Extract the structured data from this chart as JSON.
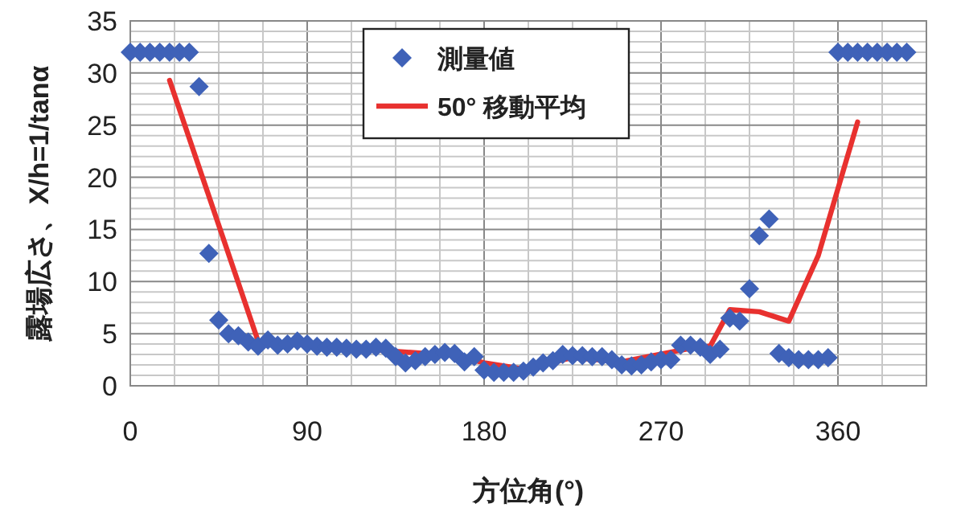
{
  "chart_data": {
    "type": "scatter",
    "xlabel": "方位角(°)",
    "ylabel": "露場広さ、X/h=1/tanα",
    "xlim": [
      0,
      405
    ],
    "xticks": [
      0,
      {
        "value": 22.5,
        "label": null
      },
      {
        "value": 45,
        "label": null
      },
      {
        "value": 67.5,
        "label": null
      },
      90,
      {
        "value": 112.5,
        "label": null
      },
      {
        "value": 135,
        "label": null
      },
      {
        "value": 157.5,
        "label": null
      },
      180,
      {
        "value": 202.5,
        "label": null
      },
      {
        "value": 225,
        "label": null
      },
      {
        "value": 247.5,
        "label": null
      },
      270,
      {
        "value": 292.5,
        "label": null
      },
      {
        "value": 315,
        "label": null
      },
      {
        "value": 337.5,
        "label": null
      },
      360,
      {
        "value": 382.5,
        "label": null
      },
      {
        "value": 405,
        "label": null
      }
    ],
    "ylim": [
      0,
      35
    ],
    "yticks": [
      0,
      {
        "value": 1,
        "label": null
      },
      {
        "value": 2,
        "label": null
      },
      {
        "value": 3,
        "label": null
      },
      {
        "value": 4,
        "label": null
      },
      5,
      {
        "value": 6,
        "label": null
      },
      {
        "value": 7,
        "label": null
      },
      {
        "value": 8,
        "label": null
      },
      {
        "value": 9,
        "label": null
      },
      10,
      {
        "value": 11,
        "label": null
      },
      {
        "value": 12,
        "label": null
      },
      {
        "value": 13,
        "label": null
      },
      {
        "value": 14,
        "label": null
      },
      15,
      {
        "value": 16,
        "label": null
      },
      {
        "value": 17,
        "label": null
      },
      {
        "value": 18,
        "label": null
      },
      {
        "value": 19,
        "label": null
      },
      20,
      {
        "value": 21,
        "label": null
      },
      {
        "value": 22,
        "label": null
      },
      {
        "value": 23,
        "label": null
      },
      {
        "value": 24,
        "label": null
      },
      25,
      {
        "value": 26,
        "label": null
      },
      {
        "value": 27,
        "label": null
      },
      {
        "value": 28,
        "label": null
      },
      {
        "value": 29,
        "label": null
      },
      30,
      {
        "value": 31,
        "label": null
      },
      {
        "value": 32,
        "label": null
      },
      {
        "value": 33,
        "label": null
      },
      {
        "value": 34,
        "label": null
      },
      35
    ],
    "grid": true,
    "legend": "top",
    "marker": "diamond",
    "series": [
      {
        "name": "測量値",
        "color": "#3f62b8",
        "x": [
          0,
          5,
          10,
          15,
          20,
          25,
          30,
          35,
          40,
          45,
          50,
          55,
          60,
          65,
          70,
          75,
          80,
          85,
          90,
          95,
          100,
          105,
          110,
          115,
          120,
          125,
          130,
          135,
          140,
          145,
          150,
          155,
          160,
          165,
          170,
          175,
          180,
          185,
          190,
          195,
          200,
          205,
          210,
          215,
          220,
          225,
          230,
          235,
          240,
          245,
          250,
          255,
          260,
          265,
          270,
          275,
          280,
          285,
          290,
          295,
          300,
          305,
          310,
          315,
          320,
          325,
          330,
          335,
          340,
          345,
          350,
          355,
          360,
          365,
          370,
          375,
          380,
          385,
          390,
          395
        ],
        "values": [
          32,
          32,
          32,
          32,
          32,
          32,
          32,
          28.7,
          12.7,
          6.3,
          5.0,
          4.8,
          4.2,
          3.8,
          4.4,
          3.9,
          4.0,
          4.3,
          4.0,
          3.8,
          3.7,
          3.7,
          3.6,
          3.5,
          3.5,
          3.7,
          3.6,
          2.8,
          2.2,
          2.4,
          2.8,
          3.0,
          3.2,
          3.1,
          2.3,
          2.8,
          1.5,
          1.3,
          1.3,
          1.3,
          1.4,
          1.8,
          2.2,
          2.4,
          3.0,
          2.9,
          2.9,
          2.8,
          2.8,
          2.5,
          2.0,
          1.9,
          2.0,
          2.3,
          2.5,
          2.5,
          3.9,
          3.9,
          3.7,
          3.0,
          3.5,
          6.5,
          6.2,
          9.3,
          14.4,
          16.0,
          3.1,
          2.7,
          2.5,
          2.5,
          2.5,
          2.7,
          32,
          32,
          32,
          32,
          32,
          32,
          32,
          32
        ]
      },
      {
        "name": "50° 移動平均",
        "type": "line",
        "color": "#e8312f",
        "marker": "none",
        "line_style": "solid",
        "x": [
          20,
          65,
          120,
          165,
          180,
          200,
          225,
          250,
          285,
          295,
          305,
          320,
          335,
          350,
          370
        ],
        "values": [
          29.3,
          4.3,
          3.5,
          2.9,
          2.2,
          1.6,
          2.7,
          2.3,
          3.6,
          3.8,
          7.3,
          7.1,
          6.2,
          12.5,
          25.3
        ]
      }
    ]
  }
}
